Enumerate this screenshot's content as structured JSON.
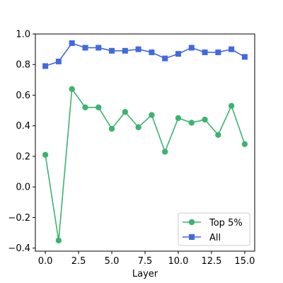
{
  "chart_data": {
    "type": "line",
    "xlabel": "Layer",
    "ylabel": "",
    "xlim": [
      -0.75,
      15.75
    ],
    "ylim": [
      -0.42,
      1.0
    ],
    "xticks": [
      0.0,
      2.5,
      5.0,
      7.5,
      10.0,
      12.5,
      15.0
    ],
    "xtick_labels": [
      "0.0",
      "2.5",
      "5.0",
      "7.5",
      "10.0",
      "12.5",
      "15.0"
    ],
    "yticks": [
      -0.4,
      -0.2,
      0.0,
      0.2,
      0.4,
      0.6,
      0.8,
      1.0
    ],
    "ytick_labels": [
      "−0.4",
      "−0.2",
      "0.0",
      "0.2",
      "0.4",
      "0.6",
      "0.8",
      "1.0"
    ],
    "grid": false,
    "legend_position": "lower-right",
    "x": [
      0,
      1,
      2,
      3,
      4,
      5,
      6,
      7,
      8,
      9,
      10,
      11,
      12,
      13,
      14,
      15
    ],
    "series": [
      {
        "name": "Top 5%",
        "color": "#3cb371",
        "marker": "circle",
        "values": [
          0.21,
          -0.35,
          0.64,
          0.52,
          0.52,
          0.38,
          0.49,
          0.39,
          0.47,
          0.23,
          0.45,
          0.42,
          0.44,
          0.34,
          0.53,
          0.28
        ]
      },
      {
        "name": "All",
        "color": "#4169e1",
        "marker": "square",
        "values": [
          0.79,
          0.82,
          0.94,
          0.91,
          0.91,
          0.89,
          0.89,
          0.9,
          0.88,
          0.84,
          0.87,
          0.91,
          0.88,
          0.88,
          0.9,
          0.85
        ]
      }
    ]
  }
}
